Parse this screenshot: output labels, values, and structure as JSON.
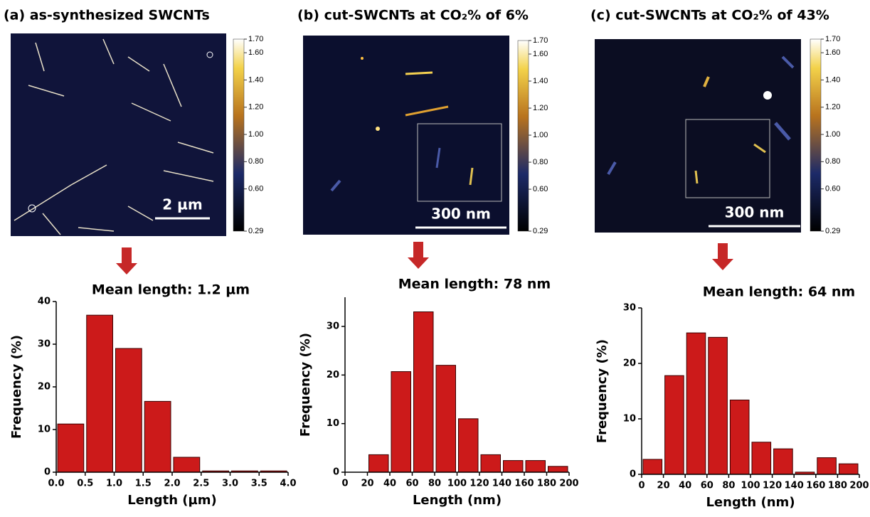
{
  "chart_data": [
    {
      "type": "histogram",
      "title": "(a) as-synthesized SWCNTs",
      "scale_bar": "2 µm",
      "clim": [
        0.29,
        1.7
      ],
      "cticks": [
        0.29,
        {
          "value": 0.6,
          "label": "0.60"
        },
        {
          "value": 0.8,
          "label": "0.80"
        },
        {
          "value": 1.0,
          "label": "1.00"
        },
        {
          "value": 1.2,
          "label": "1.20"
        },
        {
          "value": 1.4,
          "label": "1.40"
        },
        {
          "value": 1.6,
          "label": "1.60"
        },
        {
          "value": 1.7,
          "label": "1.70"
        }
      ],
      "subtitle": "Mean length: 1.2 µm",
      "xlabel": "Length (µm)",
      "ylabel": "Frequency (%)",
      "bins": [
        0,
        0.5,
        1,
        1.5,
        2,
        2.5,
        3,
        3.5,
        4
      ],
      "values": [
        11.3,
        36.8,
        29,
        16.6,
        3.5,
        0.3,
        0.3,
        0.3
      ],
      "color": "#cc1a1a",
      "xlim": [
        0,
        4
      ],
      "ylim": [
        0,
        40
      ],
      "xticks": [
        {
          "value": 0,
          "label": "0.0"
        },
        0.5,
        {
          "value": 1,
          "label": "1.0"
        },
        1.5,
        {
          "value": 2,
          "label": "2.0"
        },
        2.5,
        {
          "value": 3,
          "label": "3.0"
        },
        3.5,
        {
          "value": 4,
          "label": "4.0"
        }
      ],
      "yticks": [
        0,
        10,
        20,
        30,
        40
      ]
    },
    {
      "type": "histogram",
      "title": "(b) cut-SWCNTs at CO₂% of 6%",
      "scale_bar": "300 nm",
      "clim": [
        0.29,
        1.7
      ],
      "cticks": [
        0.29,
        {
          "value": 0.6,
          "label": "0.60"
        },
        {
          "value": 0.8,
          "label": "0.80"
        },
        {
          "value": 1.0,
          "label": "1.00"
        },
        {
          "value": 1.2,
          "label": "1.20"
        },
        {
          "value": 1.4,
          "label": "1.40"
        },
        {
          "value": 1.6,
          "label": "1.60"
        },
        {
          "value": 1.7,
          "label": "1.70"
        }
      ],
      "subtitle": "Mean length: 78 nm",
      "xlabel": "Length (nm)",
      "ylabel": "Frequency (%)",
      "bins": [
        20,
        40,
        60,
        80,
        100,
        120,
        140,
        160,
        180,
        200
      ],
      "values": [
        3.6,
        20.7,
        33,
        22,
        11,
        3.6,
        2.4,
        2.4,
        1.2
      ],
      "color": "#cc1a1a",
      "xlim": [
        0,
        200
      ],
      "ylim": [
        0,
        36
      ],
      "xticks": [
        0,
        20,
        40,
        60,
        80,
        100,
        120,
        140,
        160,
        180,
        200
      ],
      "yticks": [
        0,
        10,
        20,
        30
      ]
    },
    {
      "type": "histogram",
      "title": "(c) cut-SWCNTs at CO₂% of 43%",
      "scale_bar": "300 nm",
      "clim": [
        0.29,
        1.7
      ],
      "cticks": [
        0.29,
        {
          "value": 0.6,
          "label": "0.60"
        },
        {
          "value": 0.8,
          "label": "0.80"
        },
        {
          "value": 1.0,
          "label": "1.00"
        },
        {
          "value": 1.2,
          "label": "1.20"
        },
        {
          "value": 1.4,
          "label": "1.40"
        },
        {
          "value": 1.6,
          "label": "1.60"
        },
        {
          "value": 1.7,
          "label": "1.70"
        }
      ],
      "subtitle": "Mean length: 64 nm",
      "xlabel": "Length (nm)",
      "ylabel": "Frequency (%)",
      "bins": [
        0,
        20,
        40,
        60,
        80,
        100,
        120,
        140,
        160,
        180,
        200
      ],
      "values": [
        2.7,
        17.8,
        25.5,
        24.7,
        13.4,
        5.8,
        4.6,
        0.4,
        3,
        1.9
      ],
      "color": "#cc1a1a",
      "xlim": [
        0,
        200
      ],
      "ylim": [
        0,
        30
      ],
      "xticks": [
        0,
        20,
        40,
        60,
        80,
        100,
        120,
        140,
        160,
        180,
        200
      ],
      "yticks": [
        0,
        10,
        20,
        30
      ]
    }
  ]
}
